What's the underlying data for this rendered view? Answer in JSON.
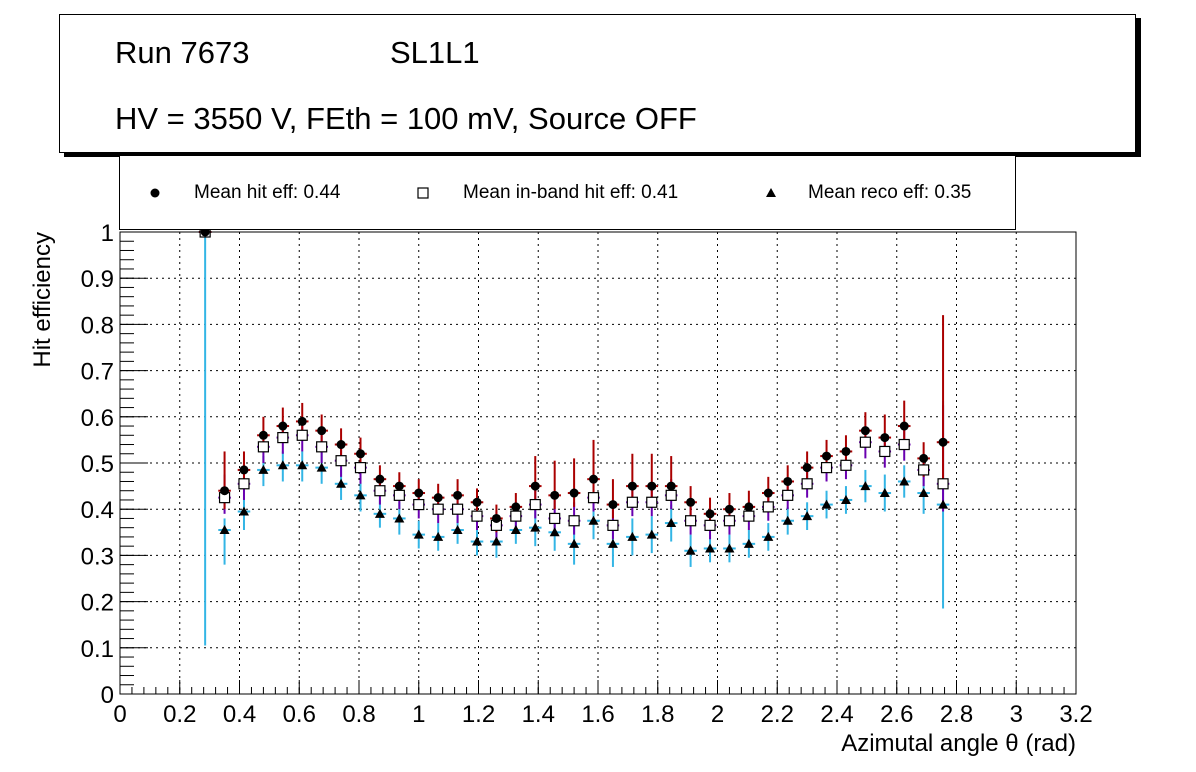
{
  "title_box": {
    "run": "Run 7673",
    "layer": "SL1L1",
    "conditions": "HV = 3550 V, FEth = 100 mV, Source OFF"
  },
  "legend": [
    {
      "label": "Mean hit  eff: 0.44",
      "marker": "circle"
    },
    {
      "label": "Mean in-band hit eff: 0.41",
      "marker": "open-square"
    },
    {
      "label": "Mean reco eff: 0.35",
      "marker": "triangle"
    }
  ],
  "colors": {
    "hit_error": "#aa0000",
    "inband_error": "#6a00b0",
    "reco_error": "#33b5e5",
    "grid": "#000000",
    "marker": "#000000"
  },
  "chart_data": {
    "type": "scatter",
    "title": "",
    "xlabel": "Azimutal angle θ (rad)",
    "ylabel": "Hit efficiency",
    "xlim": [
      0,
      3.2
    ],
    "ylim": [
      0,
      1
    ],
    "xticks": [
      "0",
      "0.2",
      "0.4",
      "0.6",
      "0.8",
      "1",
      "1.2",
      "1.4",
      "1.6",
      "1.8",
      "2",
      "2.2",
      "2.4",
      "2.6",
      "2.8",
      "3",
      "3.2"
    ],
    "yticks": [
      "0",
      "0.1",
      "0.2",
      "0.3",
      "0.4",
      "0.5",
      "0.6",
      "0.7",
      "0.8",
      "0.9",
      "1"
    ],
    "grid": true,
    "bin_half_width": 0.021,
    "x": [
      0.285,
      0.35,
      0.415,
      0.48,
      0.545,
      0.61,
      0.675,
      0.74,
      0.805,
      0.87,
      0.935,
      1.0,
      1.065,
      1.13,
      1.195,
      1.26,
      1.325,
      1.39,
      1.455,
      1.52,
      1.585,
      1.65,
      1.715,
      1.78,
      1.845,
      1.91,
      1.975,
      2.04,
      2.105,
      2.17,
      2.235,
      2.3,
      2.365,
      2.43,
      2.495,
      2.56,
      2.625,
      2.69,
      2.755
    ],
    "series": [
      {
        "name": "Mean hit  eff: 0.44",
        "marker": "circle",
        "values": [
          1.0,
          0.44,
          0.485,
          0.56,
          0.58,
          0.59,
          0.57,
          0.54,
          0.52,
          0.465,
          0.45,
          0.435,
          0.425,
          0.43,
          0.415,
          0.38,
          0.405,
          0.45,
          0.43,
          0.435,
          0.465,
          0.41,
          0.45,
          0.45,
          0.45,
          0.415,
          0.39,
          0.4,
          0.405,
          0.435,
          0.46,
          0.49,
          0.515,
          0.525,
          0.57,
          0.555,
          0.58,
          0.51,
          0.545
        ],
        "err_low": [
          0,
          0.04,
          0.04,
          0.035,
          0.035,
          0.035,
          0.035,
          0.035,
          0.035,
          0.03,
          0.03,
          0.03,
          0.03,
          0.03,
          0.03,
          0.03,
          0.03,
          0.03,
          0.03,
          0.03,
          0.03,
          0.03,
          0.03,
          0.03,
          0.03,
          0.03,
          0.03,
          0.03,
          0.03,
          0.03,
          0.03,
          0.03,
          0.03,
          0.03,
          0.035,
          0.035,
          0.035,
          0.04,
          0.08
        ],
        "err_high": [
          0,
          0.085,
          0.04,
          0.04,
          0.04,
          0.04,
          0.035,
          0.035,
          0.035,
          0.03,
          0.03,
          0.03,
          0.03,
          0.035,
          0.03,
          0.03,
          0.03,
          0.065,
          0.075,
          0.075,
          0.085,
          0.055,
          0.07,
          0.07,
          0.065,
          0.035,
          0.035,
          0.035,
          0.035,
          0.035,
          0.035,
          0.035,
          0.035,
          0.035,
          0.04,
          0.05,
          0.055,
          0.035,
          0.275
        ]
      },
      {
        "name": "Mean in-band hit eff: 0.41",
        "marker": "open-square",
        "values": [
          1.0,
          0.425,
          0.455,
          0.535,
          0.555,
          0.56,
          0.535,
          0.505,
          0.49,
          0.44,
          0.43,
          0.41,
          0.4,
          0.4,
          0.385,
          0.365,
          0.385,
          0.41,
          0.38,
          0.375,
          0.425,
          0.365,
          0.415,
          0.415,
          0.43,
          0.375,
          0.365,
          0.375,
          0.385,
          0.405,
          0.43,
          0.455,
          0.49,
          0.495,
          0.545,
          0.525,
          0.54,
          0.485,
          0.455
        ],
        "err_low": [
          0,
          0.035,
          0.035,
          0.035,
          0.035,
          0.035,
          0.035,
          0.035,
          0.035,
          0.03,
          0.03,
          0.03,
          0.03,
          0.03,
          0.03,
          0.03,
          0.03,
          0.03,
          0.03,
          0.03,
          0.03,
          0.03,
          0.03,
          0.03,
          0.03,
          0.03,
          0.03,
          0.03,
          0.03,
          0.03,
          0.03,
          0.03,
          0.03,
          0.03,
          0.035,
          0.035,
          0.035,
          0.035,
          0.06
        ],
        "err_high": [
          0,
          0.05,
          0.035,
          0.035,
          0.035,
          0.035,
          0.035,
          0.035,
          0.035,
          0.03,
          0.03,
          0.03,
          0.03,
          0.03,
          0.03,
          0.03,
          0.03,
          0.04,
          0.04,
          0.04,
          0.04,
          0.04,
          0.04,
          0.04,
          0.035,
          0.03,
          0.03,
          0.03,
          0.03,
          0.03,
          0.03,
          0.03,
          0.03,
          0.03,
          0.035,
          0.035,
          0.04,
          0.035,
          0.17
        ]
      },
      {
        "name": "Mean reco eff: 0.35",
        "marker": "triangle",
        "values": [
          1.0,
          0.355,
          0.395,
          0.485,
          0.495,
          0.495,
          0.49,
          0.455,
          0.43,
          0.39,
          0.38,
          0.345,
          0.34,
          0.355,
          0.33,
          0.33,
          0.355,
          0.36,
          0.35,
          0.325,
          0.375,
          0.325,
          0.34,
          0.345,
          0.37,
          0.31,
          0.315,
          0.315,
          0.325,
          0.34,
          0.375,
          0.385,
          0.41,
          0.42,
          0.45,
          0.435,
          0.46,
          0.435,
          0.41
        ],
        "err_low": [
          0.895,
          0.075,
          0.04,
          0.035,
          0.035,
          0.035,
          0.035,
          0.035,
          0.035,
          0.03,
          0.035,
          0.03,
          0.03,
          0.03,
          0.03,
          0.035,
          0.03,
          0.04,
          0.04,
          0.045,
          0.04,
          0.05,
          0.04,
          0.04,
          0.04,
          0.035,
          0.03,
          0.03,
          0.03,
          0.03,
          0.03,
          0.03,
          0.03,
          0.03,
          0.035,
          0.04,
          0.035,
          0.045,
          0.225
        ],
        "err_high": [
          0,
          0.025,
          0.03,
          0.03,
          0.03,
          0.03,
          0.035,
          0.035,
          0.035,
          0.03,
          0.035,
          0.03,
          0.03,
          0.03,
          0.03,
          0.03,
          0.03,
          0.04,
          0.04,
          0.04,
          0.04,
          0.04,
          0.04,
          0.04,
          0.04,
          0.035,
          0.03,
          0.03,
          0.03,
          0.03,
          0.03,
          0.03,
          0.03,
          0.03,
          0.035,
          0.04,
          0.035,
          0.04,
          0.225
        ]
      }
    ]
  }
}
